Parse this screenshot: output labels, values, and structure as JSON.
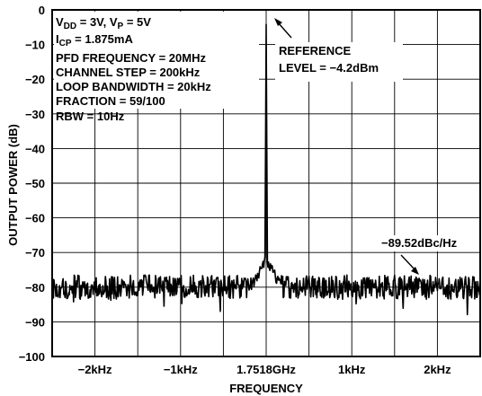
{
  "chart_data": {
    "type": "line",
    "xlabel": "FREQUENCY",
    "ylabel": "OUTPUT POWER (dB)",
    "ylim": [
      -100,
      0
    ],
    "xlim": [
      -2.5,
      2.5
    ],
    "x_unit": "kHz offset from carrier",
    "y_ticks": [
      {
        "v": 0,
        "label": "0"
      },
      {
        "v": -10,
        "label": "−10"
      },
      {
        "v": -20,
        "label": "−20"
      },
      {
        "v": -30,
        "label": "−30"
      },
      {
        "v": -40,
        "label": "−40"
      },
      {
        "v": -50,
        "label": "−50"
      },
      {
        "v": -60,
        "label": "−60"
      },
      {
        "v": -70,
        "label": "−70"
      },
      {
        "v": -80,
        "label": "−80"
      },
      {
        "v": -90,
        "label": "−90"
      },
      {
        "v": -100,
        "label": "−100"
      }
    ],
    "x_ticks": [
      {
        "v": -2,
        "label": "−2kHz"
      },
      {
        "v": -1,
        "label": "−1kHz"
      },
      {
        "v": 0,
        "label": "1.7518GHz"
      },
      {
        "v": 1,
        "label": "1kHz"
      },
      {
        "v": 2,
        "label": "2kHz"
      }
    ],
    "grid": true,
    "series": [
      {
        "noise_floor_db": -80,
        "noise_floor_range_db": [
          -89,
          -76
        ],
        "carrier_x": 0,
        "carrier_peak_db": -4.2,
        "carrier_skirt_db": -72
      }
    ],
    "annotations": [
      {
        "lines": [
          "V_DD = 3V, V_P = 5V",
          "I_CP = 1.875mA",
          "PFD FREQUENCY = 20MHz",
          "CHANNEL STEP = 200kHz",
          "LOOP BANDWIDTH = 20kHz",
          "FRACTION = 59/100",
          "RBW = 10Hz"
        ]
      },
      {
        "lines": [
          "REFERENCE",
          "LEVEL = −4.2dBm"
        ]
      },
      {
        "lines": [
          "−89.52dBc/Hz"
        ]
      }
    ]
  },
  "conditions": {
    "vdd": {
      "prefix": "V",
      "sub": "DD",
      "rest": " = 3V, V"
    },
    "vp": {
      "sub": "P",
      "rest": " = 5V"
    },
    "icp": {
      "prefix": "I",
      "sub": "CP",
      "rest": " = 1.875mA"
    },
    "pfd": "PFD FREQUENCY = 20MHz",
    "channel": "CHANNEL STEP = 200kHz",
    "loop": "LOOP BANDWIDTH = 20kHz",
    "fraction": "FRACTION = 59/100",
    "rbw": "RBW = 10Hz"
  },
  "reference": {
    "line1": "REFERENCE",
    "line2": "LEVEL = −4.2dBm"
  },
  "noise_label": "−89.52dBc/Hz"
}
